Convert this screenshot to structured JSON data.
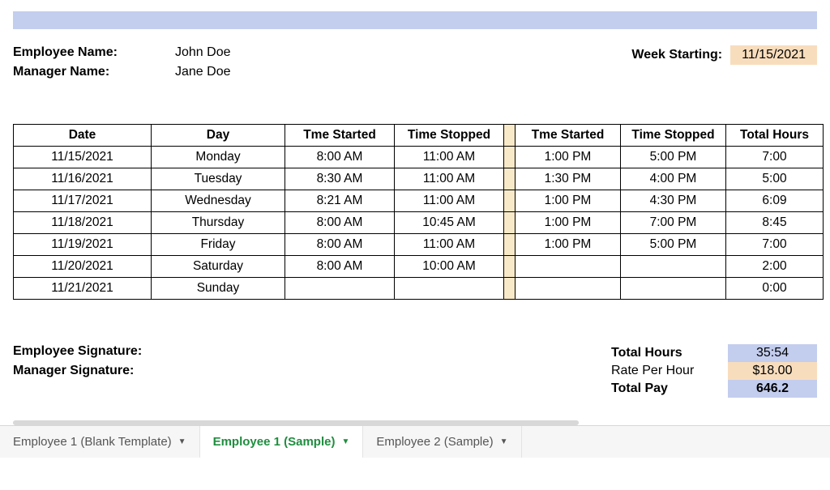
{
  "colors": {
    "header_bar": "#c3cdee",
    "peach": "#f8ddbd",
    "divider": "#f8e9c8",
    "border": "#000000",
    "tab_active_text": "#1e8e3e"
  },
  "meta": {
    "employee_name_label": "Employee Name:",
    "employee_name_value": "John Doe",
    "manager_name_label": "Manager Name:",
    "manager_name_value": "Jane Doe",
    "week_starting_label": "Week Starting:",
    "week_starting_value": "11/15/2021"
  },
  "table": {
    "headers": {
      "date": "Date",
      "day": "Day",
      "tme_started_1": "Tme Started",
      "time_stopped_1": "Time Stopped",
      "tme_started_2": "Tme Started",
      "time_stopped_2": "Time Stopped",
      "total_hours": "Total Hours"
    },
    "rows": [
      {
        "date": "11/15/2021",
        "day": "Monday",
        "s1": "8:00 AM",
        "e1": "11:00 AM",
        "s2": "1:00 PM",
        "e2": "5:00 PM",
        "total": "7:00"
      },
      {
        "date": "11/16/2021",
        "day": "Tuesday",
        "s1": "8:30 AM",
        "e1": "11:00 AM",
        "s2": "1:30 PM",
        "e2": "4:00 PM",
        "total": "5:00"
      },
      {
        "date": "11/17/2021",
        "day": "Wednesday",
        "s1": "8:21 AM",
        "e1": "11:00 AM",
        "s2": "1:00 PM",
        "e2": "4:30 PM",
        "total": "6:09"
      },
      {
        "date": "11/18/2021",
        "day": "Thursday",
        "s1": "8:00 AM",
        "e1": "10:45 AM",
        "s2": "1:00 PM",
        "e2": "7:00 PM",
        "total": "8:45"
      },
      {
        "date": "11/19/2021",
        "day": "Friday",
        "s1": "8:00 AM",
        "e1": "11:00 AM",
        "s2": "1:00 PM",
        "e2": "5:00 PM",
        "total": "7:00"
      },
      {
        "date": "11/20/2021",
        "day": "Saturday",
        "s1": "8:00 AM",
        "e1": "10:00 AM",
        "s2": "",
        "e2": "",
        "total": "2:00"
      },
      {
        "date": "11/21/2021",
        "day": "Sunday",
        "s1": "",
        "e1": "",
        "s2": "",
        "e2": "",
        "total": "0:00"
      }
    ]
  },
  "signatures": {
    "employee_label": "Employee Signature:",
    "manager_label": "Manager Signature:"
  },
  "totals": {
    "total_hours_label": "Total Hours",
    "total_hours_value": "35:54",
    "rate_label": "Rate Per Hour",
    "rate_value": "$18.00",
    "total_pay_label": "Total Pay",
    "total_pay_value": "646.2"
  },
  "tabs": [
    {
      "label": "Employee 1 (Blank Template)",
      "active": false
    },
    {
      "label": "Employee 1 (Sample)",
      "active": true
    },
    {
      "label": "Employee 2 (Sample)",
      "active": false
    }
  ]
}
